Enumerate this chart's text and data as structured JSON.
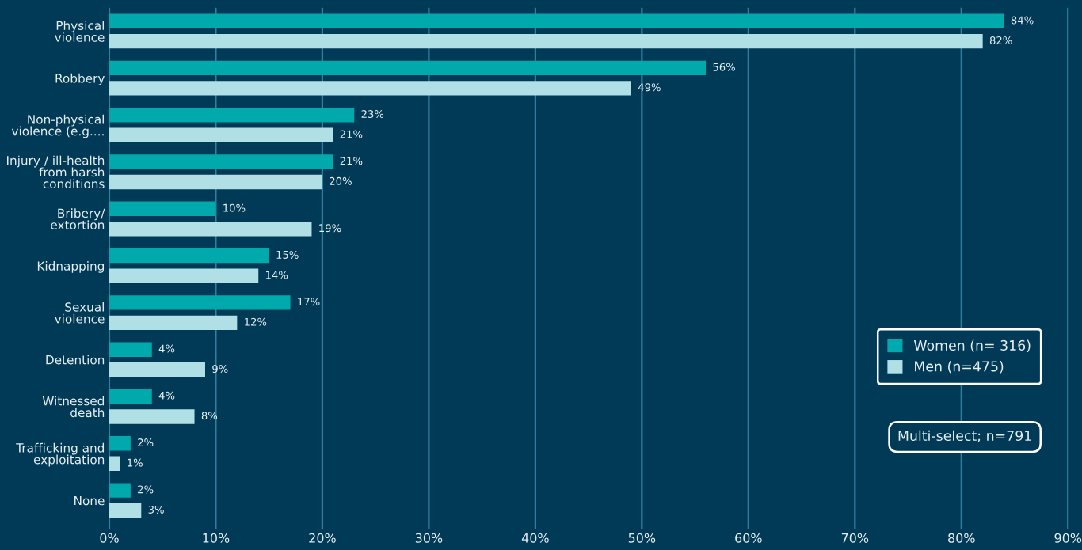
{
  "chart_data": {
    "type": "bar",
    "orientation": "horizontal",
    "categories": [
      "Physical\nviolence",
      "Robbery",
      "Non-physical\nviolence (e.g....",
      "Injury / ill-health\nfrom harsh\nconditions",
      "Bribery/\nextortion",
      "Kidnapping",
      "Sexual\nviolence",
      "Detention",
      "Witnessed\ndeath",
      "Trafficking and\nexploitation",
      "None"
    ],
    "series": [
      {
        "name": "Women (n= 316)",
        "color": "#00a9ac",
        "values": [
          84,
          56,
          23,
          21,
          10,
          15,
          17,
          4,
          4,
          2,
          2
        ],
        "value_labels": [
          "84%",
          "56%",
          "23%",
          "21%",
          "10%",
          "15%",
          "17%",
          "4%",
          "4%",
          "2%",
          "2%"
        ]
      },
      {
        "name": "Men (n=475)",
        "color": "#b0dfe5",
        "values": [
          82,
          49,
          21,
          20,
          19,
          14,
          12,
          9,
          8,
          1,
          3
        ],
        "value_labels": [
          "82%",
          "49%",
          "21%",
          "20%",
          "19%",
          "14%",
          "12%",
          "9%",
          "8%",
          "1%",
          "3%"
        ]
      }
    ],
    "xlim": [
      0,
      90
    ],
    "xticks": [
      {
        "value": 0,
        "label": "0%"
      },
      {
        "value": 10,
        "label": "10%"
      },
      {
        "value": 20,
        "label": "20%"
      },
      {
        "value": 30,
        "label": "30%"
      },
      {
        "value": 40,
        "label": "40%"
      },
      {
        "value": 50,
        "label": "50%"
      },
      {
        "value": 60,
        "label": "60%"
      },
      {
        "value": 70,
        "label": "70%"
      },
      {
        "value": 80,
        "label": "80%"
      },
      {
        "value": 90,
        "label": "90%"
      }
    ],
    "grid": "x",
    "legend": "right",
    "annotations": [
      "Multi-select; n=791"
    ]
  }
}
